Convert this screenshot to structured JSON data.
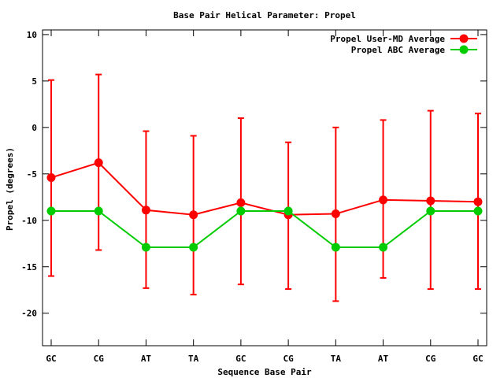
{
  "chart_data": {
    "type": "line",
    "title": "Base Pair Helical Parameter: Propel",
    "xlabel": "Sequence Base Pair",
    "ylabel": "Propel (degrees)",
    "categories": [
      "GC",
      "CG",
      "AT",
      "TA",
      "GC",
      "CG",
      "TA",
      "AT",
      "CG",
      "GC"
    ],
    "ylim": [
      -23.5,
      10.5
    ],
    "yticks": [
      10,
      5,
      0,
      -5,
      -10,
      -15,
      -20
    ],
    "grid": false,
    "legend_position": "top-right",
    "series": [
      {
        "name": "Propel User-MD Average",
        "color": "#ff0000",
        "values": [
          -5.4,
          -3.8,
          -8.9,
          -9.4,
          -8.1,
          -9.4,
          -9.3,
          -7.8,
          -7.9,
          -8.0
        ],
        "error_low": [
          -16.0,
          -13.2,
          -17.3,
          -18.0,
          -16.9,
          -17.4,
          -18.7,
          -16.2,
          -17.4,
          -17.4
        ],
        "error_high": [
          5.1,
          5.7,
          -0.4,
          -0.9,
          1.0,
          -1.6,
          0.0,
          0.8,
          1.8,
          1.5
        ]
      },
      {
        "name": "Propel ABC Average",
        "color": "#00cc00",
        "values": [
          -9.0,
          -9.0,
          -12.9,
          -12.9,
          -9.0,
          -9.0,
          -12.9,
          -12.9,
          -9.0,
          -9.0
        ]
      }
    ]
  }
}
